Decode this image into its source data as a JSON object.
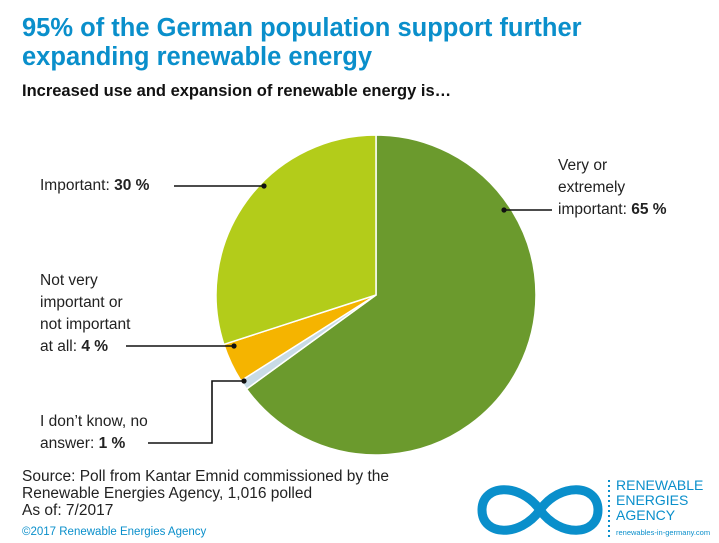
{
  "title_line1": "95% of the German population support further",
  "title_line2": "expanding renewable energy",
  "subtitle": "Increased use and expansion of renewable energy is…",
  "chart_data": {
    "type": "pie",
    "title": "95% of the German population support further expanding renewable energy",
    "subtitle": "Increased use and expansion of renewable energy is…",
    "slices": [
      {
        "label": "Very or extremely important",
        "value": 65,
        "value_label": "65 %",
        "color": "#6b9a2d"
      },
      {
        "label": "I don’t know, no answer",
        "value": 1,
        "value_label": "1 %",
        "color": "#c8dbe6"
      },
      {
        "label": "Not very important or not important at all",
        "value": 4,
        "value_label": "4 %",
        "color": "#f5b400"
      },
      {
        "label": "Important",
        "value": 30,
        "value_label": "30 %",
        "color": "#b3cc1a"
      }
    ]
  },
  "labels": {
    "very": {
      "line1": "Very or",
      "line2": "extremely",
      "line3": "important:",
      "value": "65 %"
    },
    "important": {
      "text": "Important:",
      "value": "30 %"
    },
    "notvery": {
      "line1": "Not very",
      "line2": "important or",
      "line3": "not important",
      "line4": "at all:",
      "value": "4 %"
    },
    "dontknow": {
      "line1": "I don’t know, no",
      "line2": "answer:",
      "value": "1 %"
    }
  },
  "source": {
    "line1": "Source: Poll from Kantar Emnid commissioned by the",
    "line2": "Renewable Energies Agency, 1,016 polled",
    "line3": "As of: 7/2017"
  },
  "copyright": "©2017 Renewable Energies Agency",
  "logo": {
    "line1": "RENEWABLE",
    "line2": "ENERGIES",
    "line3": "AGENCY",
    "url": "renewables-in-germany.com",
    "icon": "infinity-icon",
    "color": "#0a8fcb"
  }
}
